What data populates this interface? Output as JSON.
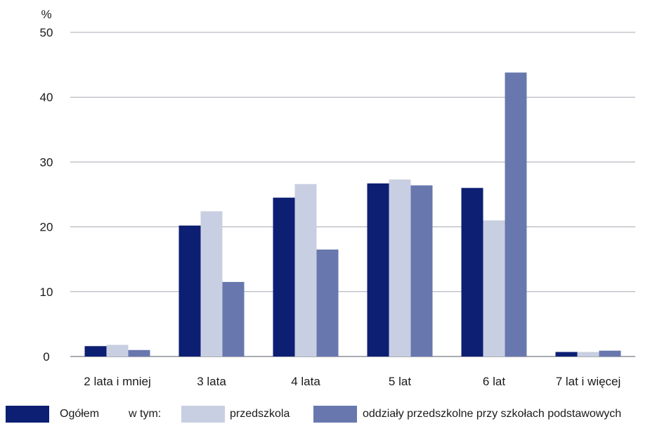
{
  "chart_data": {
    "type": "bar",
    "ylabel": "%",
    "ylim": [
      0,
      50
    ],
    "yticks": [
      0,
      10,
      20,
      30,
      40,
      50
    ],
    "grid": true,
    "legend_position": "bottom",
    "categories": [
      "2 lata i mniej",
      "3 lata",
      "4 lata",
      "5 lat",
      "6 lat",
      "7 lat i więcej"
    ],
    "series": [
      {
        "name": "Ogółem",
        "color": "#0c1f73",
        "values": [
          1.6,
          20.2,
          24.5,
          26.7,
          26.0,
          0.7
        ]
      },
      {
        "name": "przedszkola",
        "color": "#c9cfe2",
        "values": [
          1.8,
          22.4,
          26.6,
          27.3,
          21.0,
          0.7
        ]
      },
      {
        "name": "oddziały przedszkolne przy szkołach podstawowych",
        "color": "#6878ae",
        "values": [
          1.0,
          11.5,
          16.5,
          26.4,
          43.8,
          0.9
        ]
      }
    ]
  },
  "legend": {
    "prefix": "w tym:"
  }
}
